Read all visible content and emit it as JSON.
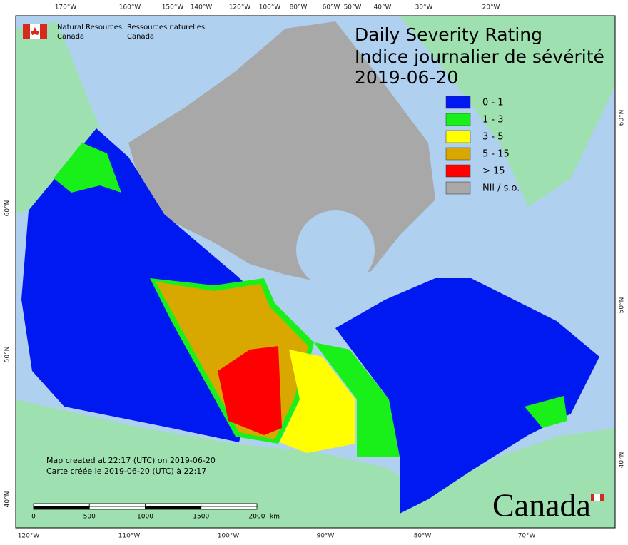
{
  "header": {
    "title": "Daily Severity Rating",
    "subtitle": "Indice journalier de sévérité",
    "date": "2019-06-20"
  },
  "agency": {
    "en_1": "Natural Resources",
    "en_2": "Canada",
    "fr_1": "Ressources naturelles",
    "fr_2": "Canada"
  },
  "legend": [
    {
      "label": "0 - 1",
      "color": "#0019f0"
    },
    {
      "label": "1 - 3",
      "color": "#19f019"
    },
    {
      "label": "3 - 5",
      "color": "#ffff00"
    },
    {
      "label": "5 - 15",
      "color": "#d9a800"
    },
    {
      "label": "> 15",
      "color": "#ff0000"
    },
    {
      "label": "Nil / s.o.",
      "color": "#a8a8a8"
    }
  ],
  "graticule": {
    "top": [
      "170°W",
      "160°W",
      "150°W",
      "140°W",
      "120°W",
      "100°W",
      "80°W",
      "60°W",
      "50°W",
      "40°W",
      "30°W",
      "20°W"
    ],
    "bottom": [
      "120°W",
      "110°W",
      "100°W",
      "90°W",
      "80°W",
      "70°W"
    ],
    "left": [
      "60°N",
      "50°N",
      "40°N"
    ],
    "right": [
      "60°N",
      "50°N",
      "40°N"
    ]
  },
  "footer": {
    "created_en": "Map created at 22:17 (UTC) on 2019-06-20",
    "created_fr": "Carte créée le 2019-06-20 (UTC) à 22:17"
  },
  "scale": {
    "ticks": [
      0,
      500,
      1000,
      1500,
      2000
    ],
    "unit": "km"
  },
  "wordmark": "Canada"
}
